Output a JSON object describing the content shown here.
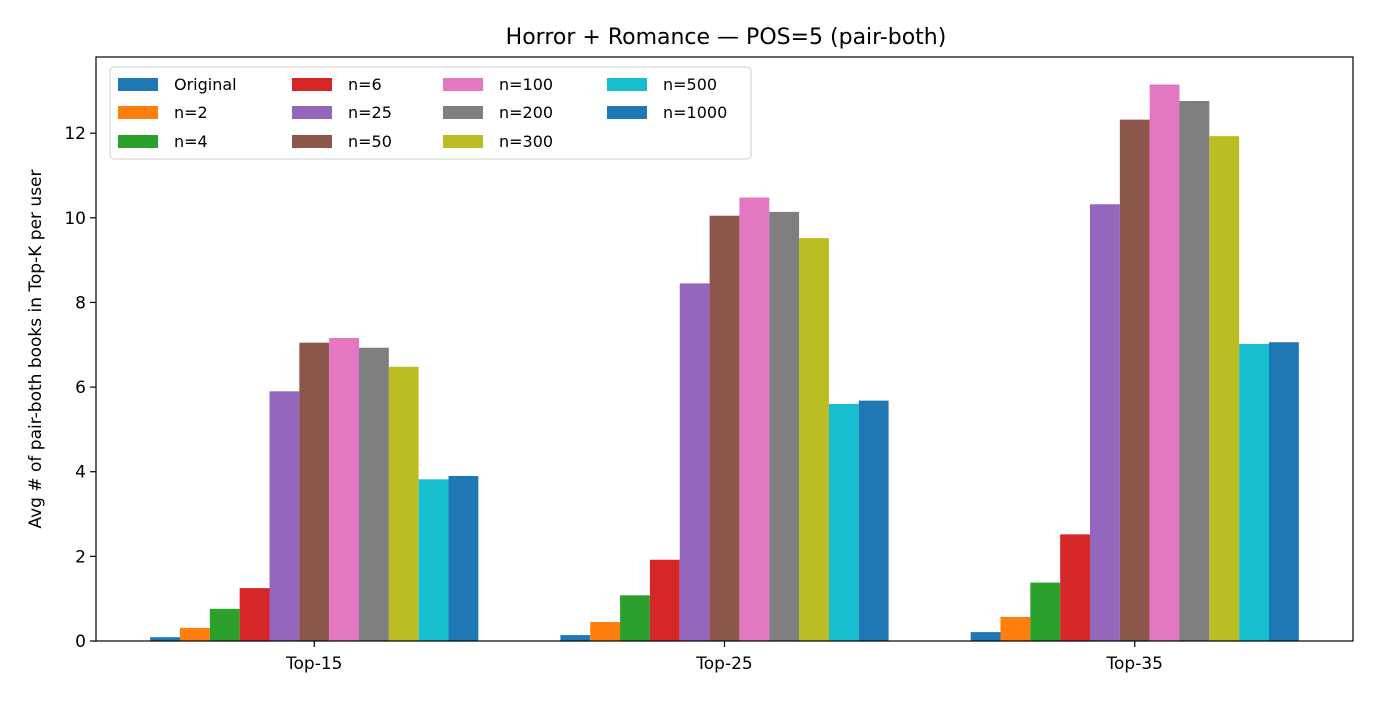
{
  "chart_data": {
    "type": "bar",
    "title": "Horror + Romance — POS=5 (pair-both)",
    "xlabel": "",
    "ylabel": "Avg # of pair-both books in Top-K per user",
    "categories": [
      "Top-15",
      "Top-25",
      "Top-35"
    ],
    "ylim": [
      0,
      13.8
    ],
    "yticks": [
      0,
      2,
      4,
      6,
      8,
      10,
      12
    ],
    "grid": false,
    "legend_placement": "top-left",
    "legend_columns": 4,
    "series": [
      {
        "name": "Original",
        "color": "#1f77b4",
        "values": [
          0.09,
          0.14,
          0.21
        ]
      },
      {
        "name": "n=2",
        "color": "#ff7f0e",
        "values": [
          0.31,
          0.45,
          0.57
        ]
      },
      {
        "name": "n=4",
        "color": "#2ca02c",
        "values": [
          0.76,
          1.08,
          1.38
        ]
      },
      {
        "name": "n=6",
        "color": "#d62728",
        "values": [
          1.25,
          1.92,
          2.52
        ]
      },
      {
        "name": "n=25",
        "color": "#9467bd",
        "values": [
          5.9,
          8.45,
          10.32
        ]
      },
      {
        "name": "n=50",
        "color": "#8c564b",
        "values": [
          7.05,
          10.05,
          12.32
        ]
      },
      {
        "name": "n=100",
        "color": "#e377c2",
        "values": [
          7.16,
          10.48,
          13.15
        ]
      },
      {
        "name": "n=200",
        "color": "#7f7f7f",
        "values": [
          6.93,
          10.14,
          12.76
        ]
      },
      {
        "name": "n=300",
        "color": "#bcbd22",
        "values": [
          6.48,
          9.52,
          11.93
        ]
      },
      {
        "name": "n=500",
        "color": "#17becf",
        "values": [
          3.82,
          5.6,
          7.02
        ]
      },
      {
        "name": "n=1000",
        "color": "#1f77b4",
        "values": [
          3.9,
          5.68,
          7.06
        ]
      }
    ]
  }
}
